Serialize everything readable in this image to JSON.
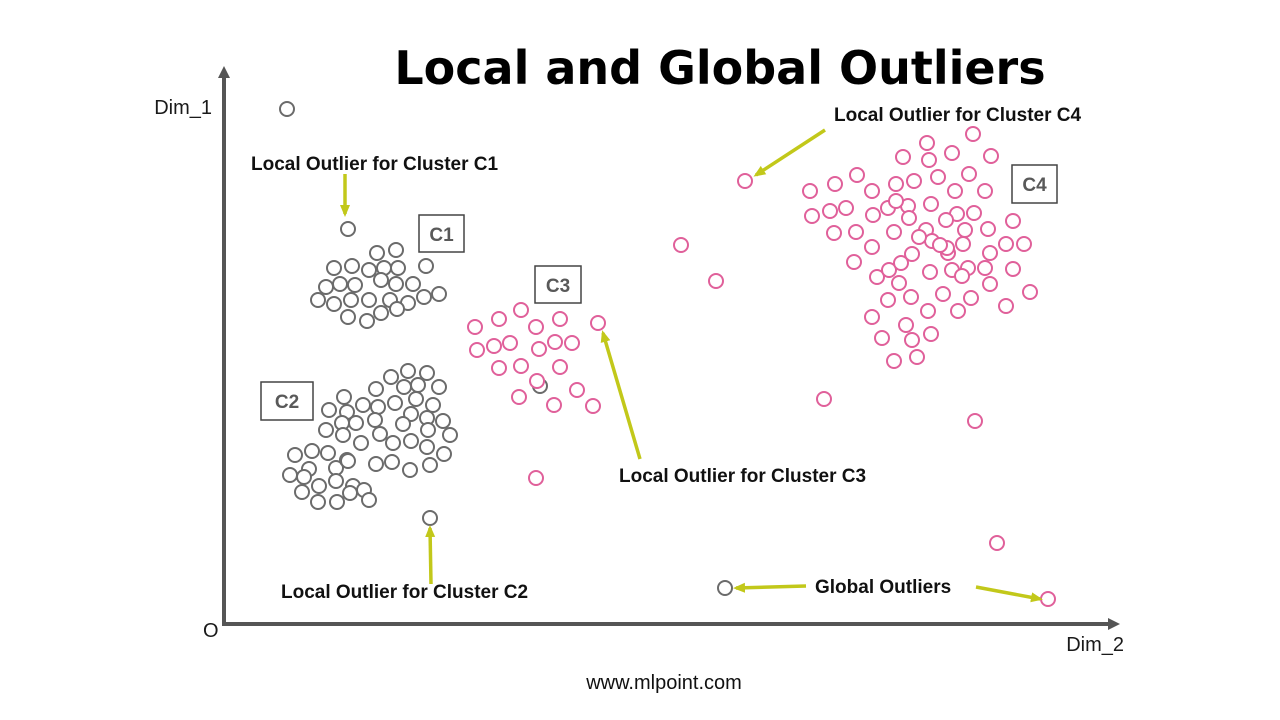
{
  "title": "Local and Global Outliers",
  "axes": {
    "y_label": "Dim_1",
    "x_label": "Dim_2",
    "origin_label": "O"
  },
  "colors": {
    "gray_points": "#6b6b6b",
    "pink_points": "#e0609a",
    "arrows": "#c2c81a",
    "axis": "#555555",
    "cluster_box_border": "#444444"
  },
  "clusters": {
    "c1": {
      "label": "C1"
    },
    "c2": {
      "label": "C2"
    },
    "c3": {
      "label": "C3"
    },
    "c4": {
      "label": "C4"
    }
  },
  "annotations": {
    "c1": "Local Outlier for Cluster C1",
    "c2": "Local Outlier for Cluster C2",
    "c3": "Local Outlier for Cluster C3",
    "c4": "Local Outlier for Cluster C4",
    "global": "Global Outliers"
  },
  "footer": "www.mlpoint.com"
}
